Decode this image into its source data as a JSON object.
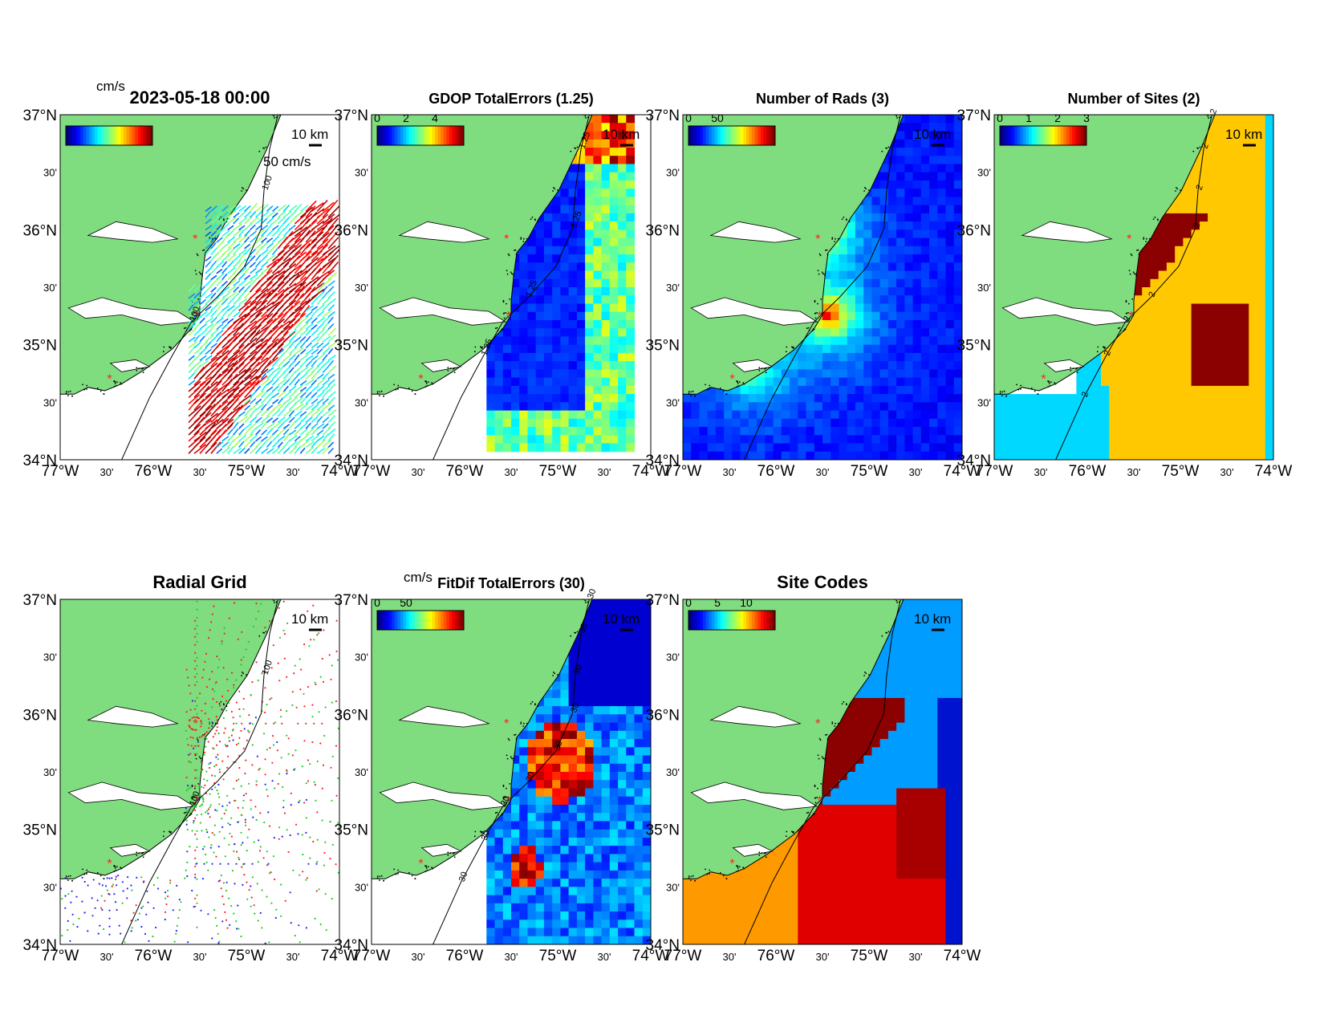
{
  "figure": {
    "lat_ticks": [
      "37°N",
      "30'",
      "36°N",
      "30'",
      "35°N",
      "30'",
      "34°N"
    ],
    "lon_ticks": [
      "77°W",
      "30'",
      "76°W",
      "30'",
      "75°W",
      "30'",
      "74°W"
    ],
    "scale_label": "10 km",
    "colors": {
      "land": "#7fdc7f",
      "water": "#ffffff",
      "site_marker": "#ff2222",
      "contour": "#000000"
    }
  },
  "panels": [
    {
      "id": "totals",
      "title": "2023-05-18 00:00",
      "colorbar_unit": "cm/s",
      "colorbar_ticks": [],
      "vector_scale_label": "50 cm/s",
      "contour_labels": [
        "100",
        "100"
      ],
      "field": "vectors"
    },
    {
      "id": "gdop",
      "title": "GDOP TotalErrors (1.25)",
      "colorbar_unit": "",
      "colorbar_ticks": [
        "0",
        "2",
        "4"
      ],
      "contour_labels": [
        "1.25",
        "1.25",
        "1.25",
        "1.25"
      ],
      "field": "gdop"
    },
    {
      "id": "nrads",
      "title": "Number of Rads (3)",
      "colorbar_unit": "",
      "colorbar_ticks": [
        "0",
        "50"
      ],
      "contour_labels": [],
      "field": "nrads"
    },
    {
      "id": "nsites",
      "title": "Number of Sites (2)",
      "colorbar_unit": "",
      "colorbar_ticks": [
        "0",
        "1",
        "2",
        "3"
      ],
      "contour_labels": [
        "2",
        "2",
        "2",
        "2",
        "2",
        "2",
        "2",
        "2"
      ],
      "field": "nsites"
    },
    {
      "id": "radgrid",
      "title": "Radial Grid",
      "colorbar_unit": "",
      "colorbar_ticks": [],
      "contour_labels": [
        "100",
        "100"
      ],
      "field": "radgrid"
    },
    {
      "id": "fitdif",
      "title": "FitDif TotalErrors (30)",
      "colorbar_unit": "cm/s",
      "colorbar_ticks": [
        "0",
        "50"
      ],
      "contour_labels": [
        "30",
        "30",
        "30",
        "30",
        "30",
        "30",
        "30",
        "30",
        "30"
      ],
      "field": "fitdif"
    },
    {
      "id": "sitecodes",
      "title": "Site Codes",
      "colorbar_unit": "",
      "colorbar_ticks": [
        "0",
        "5",
        "10"
      ],
      "contour_labels": [],
      "field": "sitecodes"
    }
  ],
  "sites_lonlat": [
    [
      -75.55,
      35.92
    ],
    [
      -75.53,
      35.25
    ],
    [
      -76.47,
      34.7
    ]
  ]
}
